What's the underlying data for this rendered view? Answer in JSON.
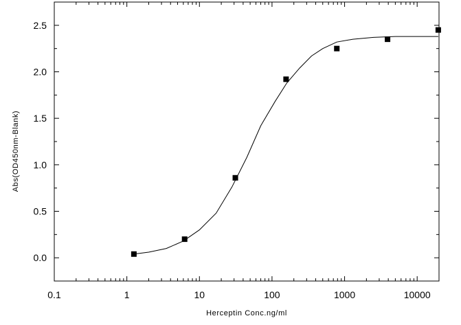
{
  "chart_data": {
    "type": "scatter",
    "title": "",
    "xlabel": "Herceptin Conc.ng/ml",
    "ylabel": "Abs(OD450nm-Blank)",
    "x_scale": "log",
    "xlim": [
      0.1,
      20000
    ],
    "ylim": [
      -0.25,
      2.75
    ],
    "x_ticks": [
      0.1,
      1,
      10,
      100,
      1000,
      10000
    ],
    "x_tick_labels": [
      "0.1",
      "1",
      "10",
      "100",
      "1000",
      "10000"
    ],
    "y_ticks": [
      0.0,
      0.5,
      1.0,
      1.5,
      2.0,
      2.5
    ],
    "y_tick_labels": [
      "0.0",
      "0.5",
      "1.0",
      "1.5",
      "2.0",
      "2.5"
    ],
    "grid": false,
    "legend": "none",
    "series": [
      {
        "type": "scatter",
        "x": [
          1.25,
          6.25,
          31.25,
          156.25,
          781.25,
          3906.25,
          19531.25
        ],
        "y": [
          0.04,
          0.2,
          0.86,
          1.92,
          2.25,
          2.35,
          2.45
        ],
        "color": "#000000",
        "marker": "square"
      },
      {
        "type": "line",
        "x": [
          1.25,
          2,
          3.5,
          6,
          10,
          17,
          28,
          45,
          70,
          110,
          160,
          240,
          350,
          500,
          780,
          1300,
          2500,
          5000,
          10000,
          19531.25
        ],
        "y": [
          0.04,
          0.06,
          0.1,
          0.18,
          0.3,
          0.48,
          0.76,
          1.08,
          1.42,
          1.68,
          1.88,
          2.04,
          2.17,
          2.25,
          2.32,
          2.35,
          2.37,
          2.38,
          2.38,
          2.38
        ],
        "color": "#000000"
      }
    ]
  }
}
